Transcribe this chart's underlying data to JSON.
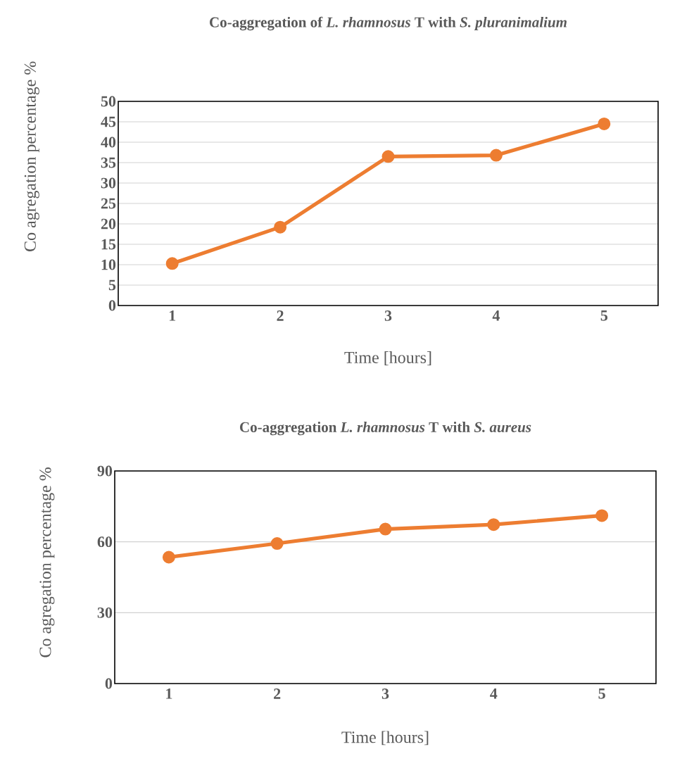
{
  "chart_data": [
    {
      "type": "line",
      "title": "Co-aggregation of *L. rhamnosus* T with *S. pluranimalium*",
      "xlabel": "Time [hours]",
      "ylabel": "Co agregation percentage %",
      "categories": [
        "1",
        "2",
        "3",
        "4",
        "5"
      ],
      "series": [
        {
          "color": "#ed7d31",
          "values": [
            10.3,
            19.2,
            36.5,
            36.8,
            44.5
          ]
        }
      ],
      "ylim": [
        0,
        50
      ],
      "yticks": [
        0,
        5,
        10,
        15,
        20,
        25,
        30,
        35,
        40,
        45,
        50
      ],
      "grid": "y",
      "marker": "circle"
    },
    {
      "type": "line",
      "title": "Co-aggregation *L. rhamnosus* T with *S. aureus*",
      "xlabel": "Time [hours]",
      "ylabel": "Co agregation percentage %",
      "categories": [
        "1",
        "2",
        "3",
        "4",
        "5"
      ],
      "series": [
        {
          "color": "#ed7d31",
          "values": [
            53.5,
            59.3,
            65.4,
            67.3,
            71.1
          ]
        }
      ],
      "ylim": [
        0,
        90
      ],
      "yticks": [
        0,
        30,
        60,
        90
      ],
      "grid": "y",
      "marker": "circle"
    }
  ]
}
